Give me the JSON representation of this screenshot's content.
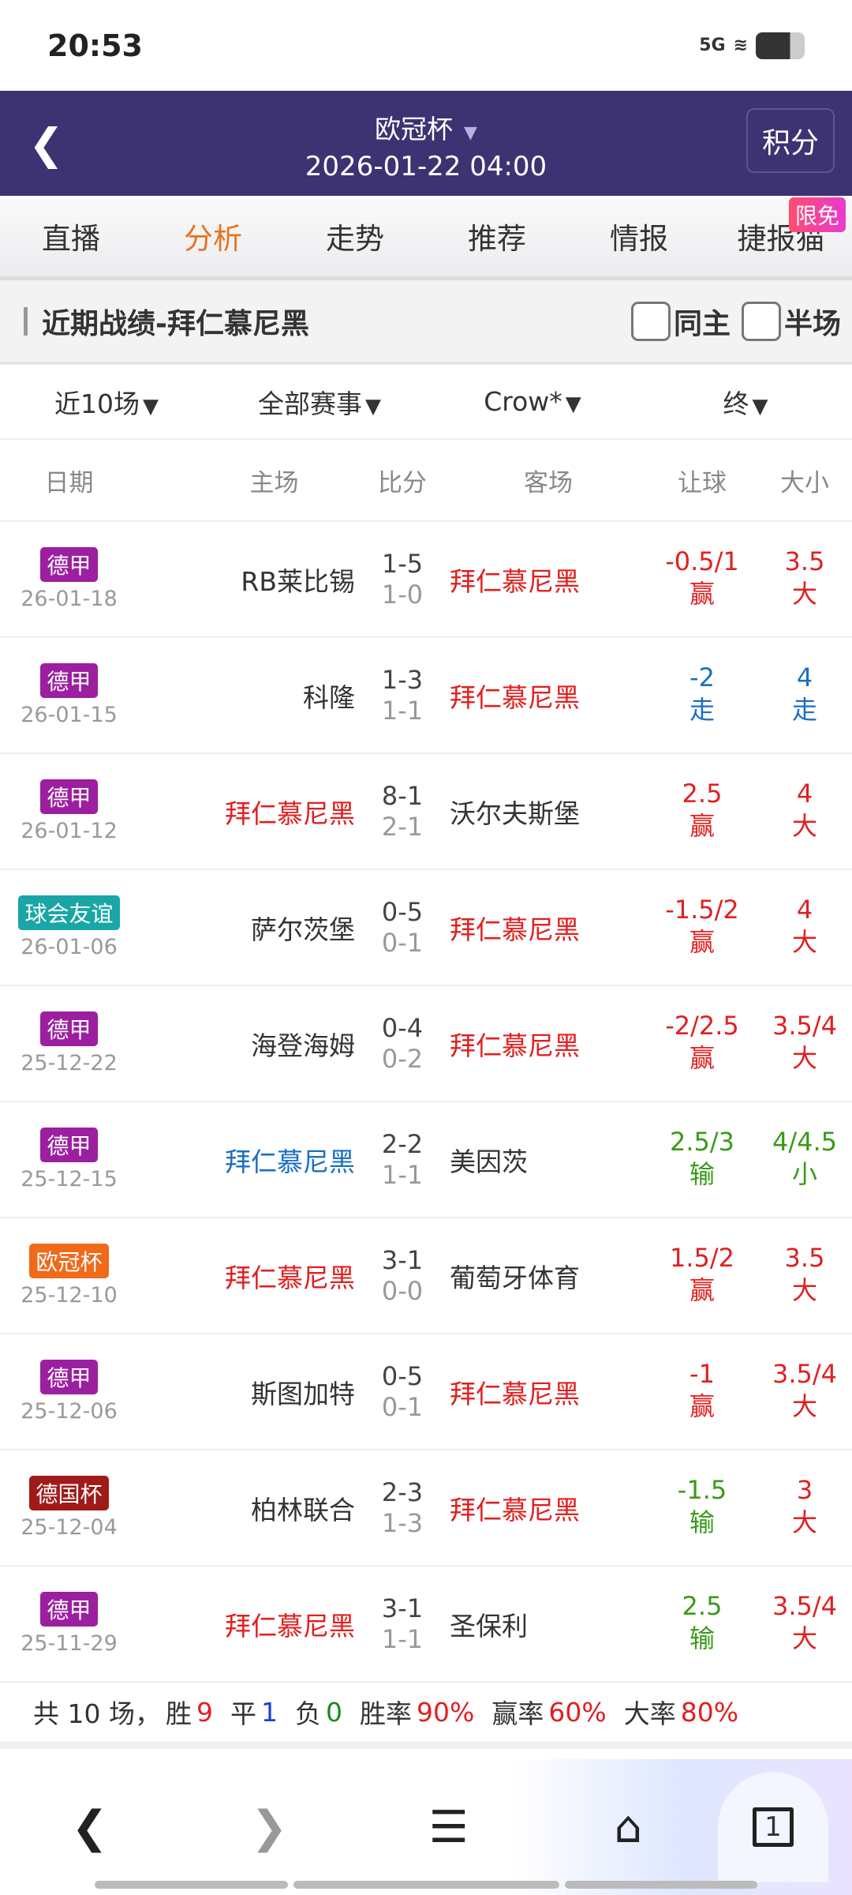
{
  "status": {
    "time": "20:53",
    "network": "5G"
  },
  "header": {
    "title": "欧冠杯",
    "date": "2026-01-22 04:00",
    "score_button": "积分"
  },
  "tabs": [
    "直播",
    "分析",
    "走势",
    "推荐",
    "情报",
    "捷报猫"
  ],
  "active_tab": "分析",
  "free_badge": "限免",
  "section": {
    "title": "近期战绩-拜仁慕尼黑",
    "same_home": "同主",
    "half": "半场"
  },
  "filters": [
    "近10场",
    "全部赛事",
    "Crow*",
    "终"
  ],
  "columns": {
    "date": "日期",
    "home": "主场",
    "score": "比分",
    "away": "客场",
    "handicap": "让球",
    "ou": "大小"
  },
  "colors": {
    "red": "#e0201f",
    "blue": "#1a6fc4",
    "green": "#3a9a1a",
    "dark": "#333333",
    "bundesliga": "#9b1fa0",
    "friendly": "#1aa6a6",
    "ucl": "#f06a1a",
    "dfb": "#a01a1a"
  },
  "rows": [
    {
      "league": "德甲",
      "lc": "bundesliga",
      "date": "26-01-18",
      "home": "RB莱比锡",
      "hcol": "dark",
      "score": "1-5",
      "half": "1-0",
      "away": "拜仁慕尼黑",
      "acol": "red",
      "hc": "-0.5/1",
      "hr": "赢",
      "hcc": "red",
      "ou": "3.5",
      "our": "大",
      "occ": "red"
    },
    {
      "league": "德甲",
      "lc": "bundesliga",
      "date": "26-01-15",
      "home": "科隆",
      "hcol": "dark",
      "score": "1-3",
      "half": "1-1",
      "away": "拜仁慕尼黑",
      "acol": "red",
      "hc": "-2",
      "hr": "走",
      "hcc": "blue",
      "ou": "4",
      "our": "走",
      "occ": "blue"
    },
    {
      "league": "德甲",
      "lc": "bundesliga",
      "date": "26-01-12",
      "home": "拜仁慕尼黑",
      "hcol": "red",
      "score": "8-1",
      "half": "2-1",
      "away": "沃尔夫斯堡",
      "acol": "dark",
      "hc": "2.5",
      "hr": "赢",
      "hcc": "red",
      "ou": "4",
      "our": "大",
      "occ": "red"
    },
    {
      "league": "球会友谊",
      "lc": "friendly",
      "date": "26-01-06",
      "home": "萨尔茨堡",
      "hcol": "dark",
      "score": "0-5",
      "half": "0-1",
      "away": "拜仁慕尼黑",
      "acol": "red",
      "hc": "-1.5/2",
      "hr": "赢",
      "hcc": "red",
      "ou": "4",
      "our": "大",
      "occ": "red"
    },
    {
      "league": "德甲",
      "lc": "bundesliga",
      "date": "25-12-22",
      "home": "海登海姆",
      "hcol": "dark",
      "score": "0-4",
      "half": "0-2",
      "away": "拜仁慕尼黑",
      "acol": "red",
      "hc": "-2/2.5",
      "hr": "赢",
      "hcc": "red",
      "ou": "3.5/4",
      "our": "大",
      "occ": "red"
    },
    {
      "league": "德甲",
      "lc": "bundesliga",
      "date": "25-12-15",
      "home": "拜仁慕尼黑",
      "hcol": "blue",
      "score": "2-2",
      "half": "1-1",
      "away": "美因茨",
      "acol": "dark",
      "hc": "2.5/3",
      "hr": "输",
      "hcc": "green",
      "ou": "4/4.5",
      "our": "小",
      "occ": "green"
    },
    {
      "league": "欧冠杯",
      "lc": "ucl",
      "date": "25-12-10",
      "home": "拜仁慕尼黑",
      "hcol": "red",
      "score": "3-1",
      "half": "0-0",
      "away": "葡萄牙体育",
      "acol": "dark",
      "hc": "1.5/2",
      "hr": "赢",
      "hcc": "red",
      "ou": "3.5",
      "our": "大",
      "occ": "red"
    },
    {
      "league": "德甲",
      "lc": "bundesliga",
      "date": "25-12-06",
      "home": "斯图加特",
      "hcol": "dark",
      "score": "0-5",
      "half": "0-1",
      "away": "拜仁慕尼黑",
      "acol": "red",
      "hc": "-1",
      "hr": "赢",
      "hcc": "red",
      "ou": "3.5/4",
      "our": "大",
      "occ": "red"
    },
    {
      "league": "德国杯",
      "lc": "dfb",
      "date": "25-12-04",
      "home": "柏林联合",
      "hcol": "dark",
      "score": "2-3",
      "half": "1-3",
      "away": "拜仁慕尼黑",
      "acol": "red",
      "hc": "-1.5",
      "hr": "输",
      "hcc": "green",
      "ou": "3",
      "our": "大",
      "occ": "red"
    },
    {
      "league": "德甲",
      "lc": "bundesliga",
      "date": "25-11-29",
      "home": "拜仁慕尼黑",
      "hcol": "red",
      "score": "3-1",
      "half": "1-1",
      "away": "圣保利",
      "acol": "dark",
      "hc": "2.5",
      "hr": "输",
      "hcc": "green",
      "ou": "3.5/4",
      "our": "大",
      "occ": "red"
    }
  ],
  "summary": {
    "total": "共 10 场，",
    "win_l": "胜",
    "win": "9",
    "draw_l": "平",
    "draw": "1",
    "loss_l": "负",
    "loss": "0",
    "wr_l": "胜率",
    "wr": "90%",
    "cover_l": "赢率",
    "cover": "60%",
    "over_l": "大率",
    "over": "80%"
  },
  "nav": {
    "tab_count": "1"
  }
}
